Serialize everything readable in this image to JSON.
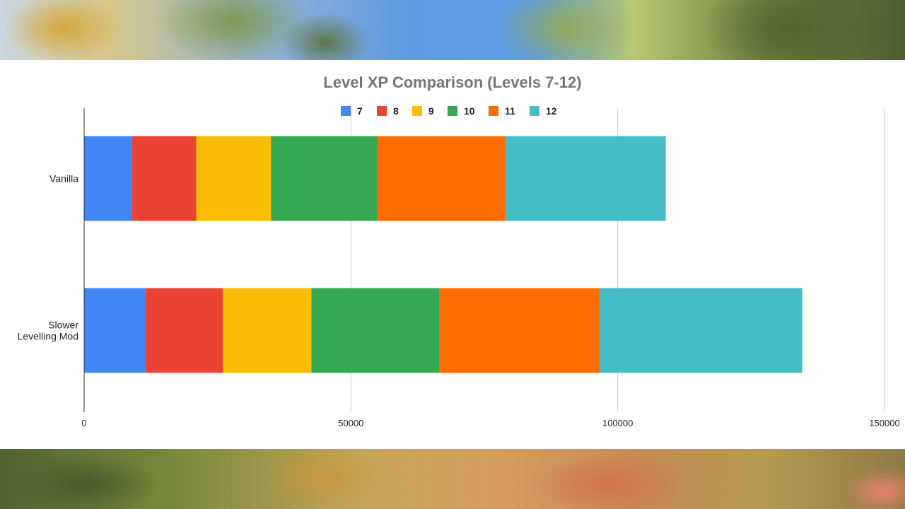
{
  "chart_data": {
    "type": "bar",
    "orientation": "horizontal",
    "stacked": true,
    "title": "Level XP Comparison (Levels 7-12)",
    "categories": [
      "Vanilla",
      "Slower Levelling Mod"
    ],
    "category_lines": [
      [
        "Vanilla"
      ],
      [
        "Slower",
        "Levelling Mod"
      ]
    ],
    "series": [
      {
        "name": "7",
        "color": "#4285f4",
        "values": [
          9000,
          11500
        ]
      },
      {
        "name": "8",
        "color": "#ea4335",
        "values": [
          12000,
          14500
        ]
      },
      {
        "name": "9",
        "color": "#fbbc04",
        "values": [
          14000,
          16600
        ]
      },
      {
        "name": "10",
        "color": "#34a853",
        "values": [
          20000,
          24000
        ]
      },
      {
        "name": "11",
        "color": "#ff6d01",
        "values": [
          24000,
          30000
        ]
      },
      {
        "name": "12",
        "color": "#46bdc6",
        "values": [
          30000,
          38000
        ]
      }
    ],
    "xlim": [
      0,
      150000
    ],
    "x_ticks": [
      0,
      50000,
      100000,
      150000
    ],
    "x_tick_labels": [
      "0",
      "50000",
      "100000",
      "150000"
    ],
    "grid": true,
    "legend_position": "top"
  }
}
